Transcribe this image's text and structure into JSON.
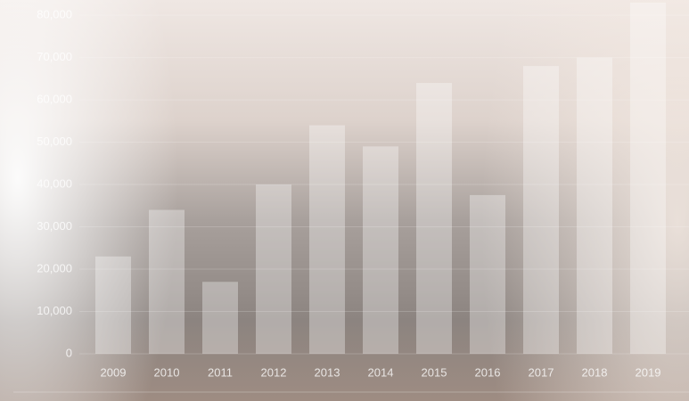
{
  "chart_data": {
    "type": "bar",
    "categories": [
      "2009",
      "2010",
      "2011",
      "2012",
      "2013",
      "2014",
      "2015",
      "2016",
      "2017",
      "2018",
      "2019"
    ],
    "values": [
      23000,
      34000,
      17000,
      40000,
      54000,
      49000,
      64000,
      37500,
      68000,
      70000,
      83000
    ],
    "color": "rgba(255,255,255,0.33)",
    "ylim": [
      0,
      83600
    ],
    "yticks": [
      0,
      {
        "value": 10000,
        "label": "10,000"
      },
      {
        "value": 20000,
        "label": "20,000"
      },
      {
        "value": 30000,
        "label": "30,000"
      },
      {
        "value": 40000,
        "label": "40,000"
      },
      {
        "value": 50000,
        "label": "50,000"
      },
      {
        "value": 60000,
        "label": "60,000"
      },
      {
        "value": 70000,
        "label": "70,000"
      },
      {
        "value": 80000,
        "label": "80,000"
      }
    ],
    "grid": true
  }
}
